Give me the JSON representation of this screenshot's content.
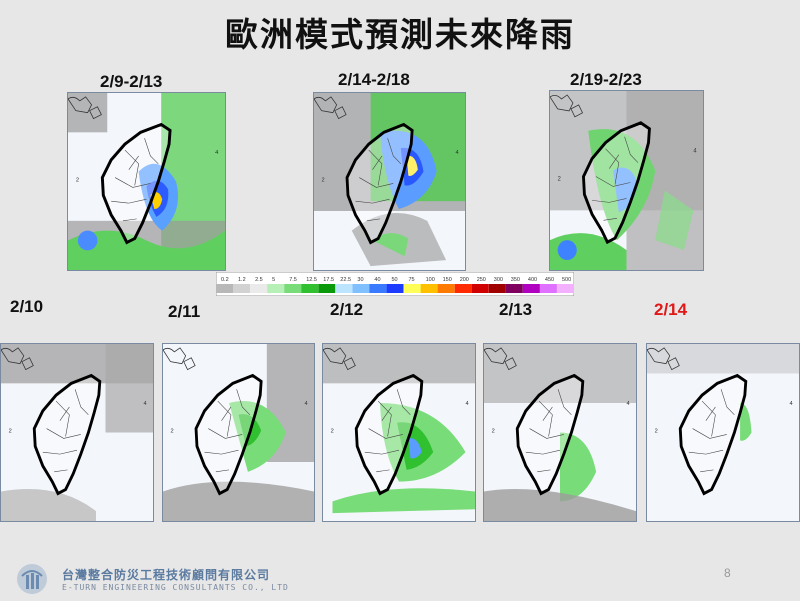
{
  "title": "歐洲模式預測未來降雨",
  "top_row": [
    {
      "label": "2/9-2/13",
      "pattern": "heavy"
    },
    {
      "label": "2/14-2/18",
      "pattern": "heavy2"
    },
    {
      "label": "2/19-2/23",
      "pattern": "heavy3"
    }
  ],
  "bottom_row": [
    {
      "label": "2/10",
      "pattern": "dry"
    },
    {
      "label": "2/11",
      "pattern": "light"
    },
    {
      "label": "2/12",
      "pattern": "moderate"
    },
    {
      "label": "2/13",
      "pattern": "light2"
    },
    {
      "label": "2/14",
      "pattern": "minimal",
      "highlight": true
    }
  ],
  "colorscale": {
    "ticks": [
      "0.2",
      "1.2",
      "2.5",
      "5",
      "7.5",
      "12.5",
      "17.5",
      "22.5",
      "30",
      "40",
      "50",
      "75",
      "100",
      "150",
      "200",
      "250",
      "300",
      "350",
      "400",
      "450",
      "500"
    ],
    "colors": [
      "#b8b8b8",
      "#d2d2d2",
      "#eaeaea",
      "#b6f0b6",
      "#78dc78",
      "#30c030",
      "#0b9a0b",
      "#bde4ff",
      "#80c0ff",
      "#3a7aff",
      "#1e3cff",
      "#ffff58",
      "#ffc000",
      "#ff7a00",
      "#ff2a00",
      "#d00000",
      "#a00000",
      "#800060",
      "#b000c0",
      "#e070ff",
      "#f2b0ff"
    ]
  },
  "footer": {
    "company_cn": "台灣整合防災工程技術顧問有限公司",
    "company_en": "E-TURN ENGINEERING CONSULTANTS CO., LTD",
    "page_number": "8"
  }
}
